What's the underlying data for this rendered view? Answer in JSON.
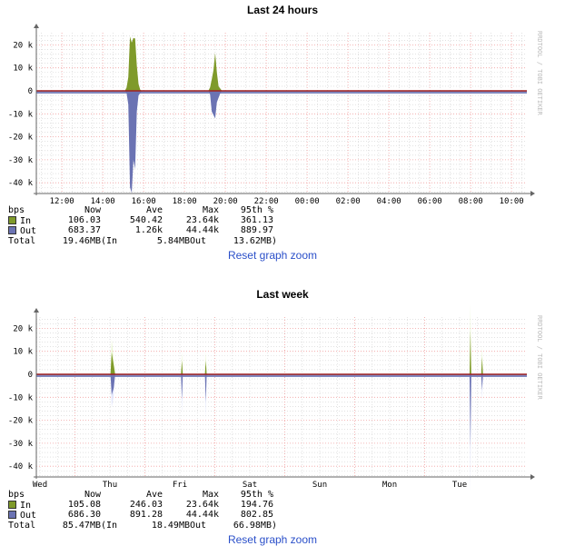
{
  "colors": {
    "in": "#7f9a2a",
    "in_light": "#e6f5c8",
    "out": "#6b73b3",
    "out_light": "#dfe3fb",
    "zero": "#a02020",
    "grid_major": "#f0a0a0",
    "grid_minor": "#d0d0d0",
    "link": "#2a4fc9"
  },
  "watermark": "RRDTOOL / TOBI OETIKER",
  "charts": [
    {
      "title": "Last 24 hours",
      "legend": {
        "header": [
          "bps",
          "Now",
          "Ave",
          "Max",
          "95th %"
        ],
        "in": [
          "In",
          "106.03",
          "540.42",
          "23.64k",
          "361.13"
        ],
        "out": [
          "Out",
          "683.37",
          "1.26k",
          "44.44k",
          "889.97"
        ],
        "total": [
          "Total",
          "19.46MB",
          "(In",
          "5.84MB",
          "Out",
          "13.62MB)"
        ]
      },
      "reset_label": "Reset graph zoom"
    },
    {
      "title": "Last week",
      "legend": {
        "header": [
          "bps",
          "Now",
          "Ave",
          "Max",
          "95th %"
        ],
        "in": [
          "In",
          "105.08",
          "246.03",
          "23.64k",
          "194.76"
        ],
        "out": [
          "Out",
          "686.30",
          "891.28",
          "44.44k",
          "802.85"
        ],
        "total": [
          "Total",
          "85.47MB",
          "(In",
          "18.49MB",
          "Out",
          "66.98MB)"
        ]
      },
      "reset_label": "Reset graph zoom"
    }
  ],
  "chart_data": [
    {
      "type": "area",
      "title": "Last 24 hours",
      "ylabel": "bps",
      "ylim": [
        -45000,
        25000
      ],
      "yticks": [
        "20 k",
        "10 k",
        "0",
        "-10 k",
        "-20 k",
        "-30 k",
        "-40 k"
      ],
      "ytick_values": [
        20000,
        10000,
        0,
        -10000,
        -20000,
        -30000,
        -40000
      ],
      "xticks": [
        "12:00",
        "14:00",
        "16:00",
        "18:00",
        "20:00",
        "22:00",
        "00:00",
        "02:00",
        "04:00",
        "06:00",
        "08:00",
        "10:00"
      ],
      "xrange": [
        "10:45",
        "10:45 (+1 day)"
      ],
      "grid": true,
      "series": [
        {
          "name": "In",
          "points": [
            [
              "15:05",
              0
            ],
            [
              "15:10",
              1500
            ],
            [
              "15:15",
              6000
            ],
            [
              "15:20",
              23600
            ],
            [
              "15:25",
              21000
            ],
            [
              "15:30",
              23000
            ],
            [
              "15:35",
              22800
            ],
            [
              "15:40",
              11000
            ],
            [
              "15:45",
              3000
            ],
            [
              "15:50",
              500
            ],
            [
              "15:55",
              0
            ],
            [
              "19:10",
              0
            ],
            [
              "19:15",
              1500
            ],
            [
              "19:20",
              5000
            ],
            [
              "19:25",
              9000
            ],
            [
              "19:30",
              16500
            ],
            [
              "19:35",
              8000
            ],
            [
              "19:40",
              2000
            ],
            [
              "19:50",
              0
            ]
          ]
        },
        {
          "name": "Out",
          "points": [
            [
              "15:05",
              0
            ],
            [
              "15:10",
              -1000
            ],
            [
              "15:15",
              -6000
            ],
            [
              "15:20",
              -42000
            ],
            [
              "15:25",
              -44400
            ],
            [
              "15:30",
              -30000
            ],
            [
              "15:35",
              -34000
            ],
            [
              "15:40",
              -9000
            ],
            [
              "15:45",
              -2000
            ],
            [
              "15:55",
              0
            ],
            [
              "19:10",
              0
            ],
            [
              "19:15",
              -1500
            ],
            [
              "19:20",
              -9000
            ],
            [
              "19:30",
              -12000
            ],
            [
              "19:35",
              -5000
            ],
            [
              "19:45",
              -1000
            ],
            [
              "19:50",
              0
            ]
          ]
        }
      ]
    },
    {
      "type": "area",
      "title": "Last week",
      "ylabel": "bps",
      "ylim": [
        -45000,
        25000
      ],
      "yticks": [
        "20 k",
        "10 k",
        "0",
        "-10 k",
        "-20 k",
        "-30 k",
        "-40 k"
      ],
      "ytick_values": [
        20000,
        10000,
        0,
        -10000,
        -20000,
        -30000,
        -40000
      ],
      "xticks": [
        "Wed",
        "Thu",
        "Fri",
        "Sat",
        "Sun",
        "Mon",
        "Tue"
      ],
      "grid": true,
      "series": [
        {
          "name": "In",
          "points": [
            [
              "Thu",
              12.2,
              0
            ],
            [
              "Thu",
              12.6,
              9500
            ],
            [
              "Thu",
              13.3,
              4000
            ],
            [
              "Thu",
              13.8,
              0
            ],
            [
              "Fri",
              12.4,
              0
            ],
            [
              "Fri",
              12.7,
              6000
            ],
            [
              "Fri",
              13.0,
              0
            ],
            [
              "Fri",
              20.6,
              0
            ],
            [
              "Fri",
              20.9,
              6000
            ],
            [
              "Fri",
              21.2,
              0
            ],
            [
              "Tue",
              15.4,
              0
            ],
            [
              "Tue",
              15.7,
              19000
            ],
            [
              "Tue",
              16.0,
              0
            ],
            [
              "Tue",
              19.4,
              0
            ],
            [
              "Tue",
              19.7,
              7500
            ],
            [
              "Tue",
              20.0,
              0
            ]
          ]
        },
        {
          "name": "Out",
          "points": [
            [
              "Thu",
              12.2,
              0
            ],
            [
              "Thu",
              12.6,
              -9000
            ],
            [
              "Thu",
              13.3,
              -6000
            ],
            [
              "Thu",
              13.8,
              0
            ],
            [
              "Fri",
              12.4,
              0
            ],
            [
              "Fri",
              12.7,
              -11000
            ],
            [
              "Fri",
              13.0,
              0
            ],
            [
              "Fri",
              20.6,
              0
            ],
            [
              "Fri",
              20.9,
              -12000
            ],
            [
              "Fri",
              21.2,
              0
            ],
            [
              "Tue",
              15.4,
              0
            ],
            [
              "Tue",
              15.7,
              -32000
            ],
            [
              "Tue",
              16.0,
              0
            ],
            [
              "Tue",
              19.4,
              0
            ],
            [
              "Tue",
              19.7,
              -7000
            ],
            [
              "Tue",
              20.0,
              0
            ]
          ]
        }
      ]
    }
  ]
}
